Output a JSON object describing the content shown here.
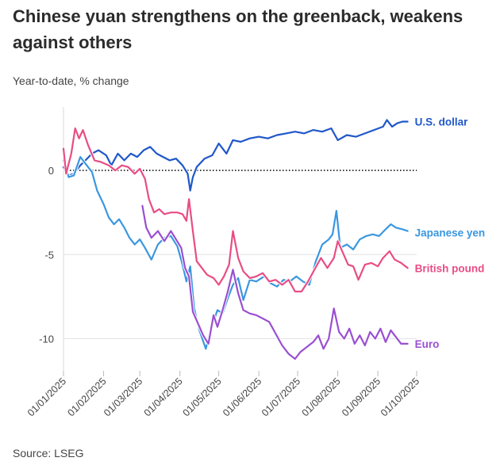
{
  "header": {
    "title": "Chinese yuan strengthens on the greenback, weakens against others",
    "subtitle": "Year-to-date, % change"
  },
  "footer": {
    "source": "Source: LSEG"
  },
  "chart_data": {
    "type": "line",
    "title": "Chinese yuan strengthens on the greenback, weakens against others",
    "subtitle": "Year-to-date, % change",
    "xlabel": "",
    "ylabel": "",
    "x_range": [
      "2025-01-01",
      "2025-10-01"
    ],
    "ylim": [
      -12,
      3.3
    ],
    "y_ticks": [
      0,
      -5,
      -10
    ],
    "x_ticks": [
      "01/01/2025",
      "01/02/2025",
      "01/03/2025",
      "01/04/2025",
      "01/05/2025",
      "01/06/2025",
      "01/07/2025",
      "01/08/2025",
      "01/09/2025",
      "01/10/2025"
    ],
    "zero_line": "dotted",
    "grid": "horizontal",
    "legend": "direct labels at line ends",
    "series": [
      {
        "name": "U.S. dollar",
        "color": "#1f57c9",
        "points": [
          [
            "2025-01-01",
            0.2
          ],
          [
            "2025-01-05",
            -0.3
          ],
          [
            "2025-01-09",
            -0.2
          ],
          [
            "2025-01-14",
            0.3
          ],
          [
            "2025-01-18",
            0.6
          ],
          [
            "2025-01-23",
            1.0
          ],
          [
            "2025-01-28",
            1.2
          ],
          [
            "2025-02-03",
            0.9
          ],
          [
            "2025-02-07",
            0.3
          ],
          [
            "2025-02-12",
            1.0
          ],
          [
            "2025-02-17",
            0.6
          ],
          [
            "2025-02-22",
            1.0
          ],
          [
            "2025-02-27",
            0.8
          ],
          [
            "2025-03-04",
            1.2
          ],
          [
            "2025-03-09",
            1.4
          ],
          [
            "2025-03-14",
            1.0
          ],
          [
            "2025-03-19",
            0.8
          ],
          [
            "2025-03-24",
            0.6
          ],
          [
            "2025-03-29",
            0.7
          ],
          [
            "2025-04-03",
            0.3
          ],
          [
            "2025-04-07",
            -0.2
          ],
          [
            "2025-04-09",
            -1.2
          ],
          [
            "2025-04-11",
            -0.4
          ],
          [
            "2025-04-14",
            0.2
          ],
          [
            "2025-04-20",
            0.7
          ],
          [
            "2025-04-26",
            0.9
          ],
          [
            "2025-05-01",
            1.6
          ],
          [
            "2025-05-07",
            1.0
          ],
          [
            "2025-05-12",
            1.8
          ],
          [
            "2025-05-18",
            1.7
          ],
          [
            "2025-05-25",
            1.9
          ],
          [
            "2025-06-01",
            2.0
          ],
          [
            "2025-06-08",
            1.9
          ],
          [
            "2025-06-15",
            2.1
          ],
          [
            "2025-06-22",
            2.2
          ],
          [
            "2025-06-29",
            2.3
          ],
          [
            "2025-07-06",
            2.2
          ],
          [
            "2025-07-13",
            2.4
          ],
          [
            "2025-07-20",
            2.3
          ],
          [
            "2025-07-27",
            2.5
          ],
          [
            "2025-08-01",
            1.8
          ],
          [
            "2025-08-08",
            2.1
          ],
          [
            "2025-08-15",
            2.0
          ],
          [
            "2025-08-22",
            2.2
          ],
          [
            "2025-08-29",
            2.4
          ],
          [
            "2025-09-05",
            2.6
          ],
          [
            "2025-09-08",
            3.0
          ],
          [
            "2025-09-12",
            2.6
          ],
          [
            "2025-09-16",
            2.8
          ],
          [
            "2025-09-20",
            2.9
          ],
          [
            "2025-09-24",
            2.9
          ]
        ]
      },
      {
        "name": "Japanese yen",
        "color": "#3a97e0",
        "points": [
          [
            "2025-01-01",
            0.6
          ],
          [
            "2025-01-05",
            -0.4
          ],
          [
            "2025-01-09",
            -0.3
          ],
          [
            "2025-01-14",
            0.8
          ],
          [
            "2025-01-19",
            0.3
          ],
          [
            "2025-01-23",
            -0.1
          ],
          [
            "2025-01-27",
            -1.2
          ],
          [
            "2025-02-01",
            -2.0
          ],
          [
            "2025-02-05",
            -2.8
          ],
          [
            "2025-02-09",
            -3.2
          ],
          [
            "2025-02-13",
            -2.9
          ],
          [
            "2025-02-17",
            -3.4
          ],
          [
            "2025-02-21",
            -4.0
          ],
          [
            "2025-02-25",
            -4.4
          ],
          [
            "2025-03-01",
            -4.1
          ],
          [
            "2025-03-05",
            -4.6
          ],
          [
            "2025-03-10",
            -5.3
          ],
          [
            "2025-03-15",
            -4.4
          ],
          [
            "2025-03-20",
            -4.0
          ],
          [
            "2025-03-25",
            -3.9
          ],
          [
            "2025-03-30",
            -4.5
          ],
          [
            "2025-04-03",
            -5.6
          ],
          [
            "2025-04-06",
            -6.6
          ],
          [
            "2025-04-09",
            -5.7
          ],
          [
            "2025-04-12",
            -8.2
          ],
          [
            "2025-04-16",
            -9.5
          ],
          [
            "2025-04-21",
            -10.6
          ],
          [
            "2025-04-25",
            -9.4
          ],
          [
            "2025-04-30",
            -8.3
          ],
          [
            "2025-05-04",
            -8.5
          ],
          [
            "2025-05-08",
            -7.6
          ],
          [
            "2025-05-12",
            -6.8
          ],
          [
            "2025-05-16",
            -6.4
          ],
          [
            "2025-05-20",
            -7.7
          ],
          [
            "2025-05-25",
            -6.5
          ],
          [
            "2025-05-30",
            -6.6
          ],
          [
            "2025-06-05",
            -6.3
          ],
          [
            "2025-06-10",
            -6.7
          ],
          [
            "2025-06-15",
            -6.9
          ],
          [
            "2025-06-20",
            -6.5
          ],
          [
            "2025-06-25",
            -6.6
          ],
          [
            "2025-06-30",
            -6.3
          ],
          [
            "2025-07-05",
            -6.6
          ],
          [
            "2025-07-10",
            -6.8
          ],
          [
            "2025-07-15",
            -5.4
          ],
          [
            "2025-07-20",
            -4.4
          ],
          [
            "2025-07-25",
            -4.1
          ],
          [
            "2025-07-28",
            -3.8
          ],
          [
            "2025-07-31",
            -2.4
          ],
          [
            "2025-08-03",
            -4.6
          ],
          [
            "2025-08-08",
            -4.4
          ],
          [
            "2025-08-13",
            -4.7
          ],
          [
            "2025-08-18",
            -4.1
          ],
          [
            "2025-08-23",
            -3.9
          ],
          [
            "2025-08-28",
            -3.8
          ],
          [
            "2025-09-02",
            -3.9
          ],
          [
            "2025-09-07",
            -3.5
          ],
          [
            "2025-09-11",
            -3.2
          ],
          [
            "2025-09-15",
            -3.4
          ],
          [
            "2025-09-20",
            -3.5
          ],
          [
            "2025-09-24",
            -3.6
          ]
        ]
      },
      {
        "name": "British pound",
        "color": "#e84d84",
        "points": [
          [
            "2025-01-01",
            1.3
          ],
          [
            "2025-01-03",
            -0.2
          ],
          [
            "2025-01-07",
            1.0
          ],
          [
            "2025-01-10",
            2.5
          ],
          [
            "2025-01-13",
            1.9
          ],
          [
            "2025-01-16",
            2.4
          ],
          [
            "2025-01-20",
            1.5
          ],
          [
            "2025-01-25",
            0.6
          ],
          [
            "2025-01-30",
            0.5
          ],
          [
            "2025-02-05",
            0.3
          ],
          [
            "2025-02-10",
            0.0
          ],
          [
            "2025-02-15",
            0.3
          ],
          [
            "2025-02-20",
            0.2
          ],
          [
            "2025-02-25",
            -0.2
          ],
          [
            "2025-03-01",
            0.1
          ],
          [
            "2025-03-05",
            -0.5
          ],
          [
            "2025-03-08",
            -1.7
          ],
          [
            "2025-03-12",
            -2.5
          ],
          [
            "2025-03-16",
            -2.3
          ],
          [
            "2025-03-20",
            -2.6
          ],
          [
            "2025-03-25",
            -2.5
          ],
          [
            "2025-03-30",
            -2.5
          ],
          [
            "2025-04-03",
            -2.6
          ],
          [
            "2025-04-06",
            -3.0
          ],
          [
            "2025-04-08",
            -1.7
          ],
          [
            "2025-04-11",
            -3.6
          ],
          [
            "2025-04-14",
            -5.4
          ],
          [
            "2025-04-18",
            -5.8
          ],
          [
            "2025-04-22",
            -6.2
          ],
          [
            "2025-04-27",
            -6.4
          ],
          [
            "2025-05-01",
            -6.8
          ],
          [
            "2025-05-05",
            -6.3
          ],
          [
            "2025-05-09",
            -5.6
          ],
          [
            "2025-05-12",
            -3.6
          ],
          [
            "2025-05-16",
            -5.2
          ],
          [
            "2025-05-20",
            -6.0
          ],
          [
            "2025-05-25",
            -6.4
          ],
          [
            "2025-05-30",
            -6.3
          ],
          [
            "2025-06-04",
            -6.1
          ],
          [
            "2025-06-09",
            -6.6
          ],
          [
            "2025-06-14",
            -6.5
          ],
          [
            "2025-06-19",
            -6.8
          ],
          [
            "2025-06-24",
            -6.5
          ],
          [
            "2025-06-29",
            -7.2
          ],
          [
            "2025-07-04",
            -7.2
          ],
          [
            "2025-07-09",
            -6.6
          ],
          [
            "2025-07-14",
            -5.9
          ],
          [
            "2025-07-19",
            -5.2
          ],
          [
            "2025-07-24",
            -5.8
          ],
          [
            "2025-07-29",
            -5.2
          ],
          [
            "2025-08-01",
            -4.2
          ],
          [
            "2025-08-05",
            -4.9
          ],
          [
            "2025-08-09",
            -5.6
          ],
          [
            "2025-08-13",
            -5.7
          ],
          [
            "2025-08-17",
            -6.5
          ],
          [
            "2025-08-22",
            -5.6
          ],
          [
            "2025-08-27",
            -5.5
          ],
          [
            "2025-09-01",
            -5.7
          ],
          [
            "2025-09-05",
            -5.2
          ],
          [
            "2025-09-10",
            -4.8
          ],
          [
            "2025-09-14",
            -5.3
          ],
          [
            "2025-09-19",
            -5.5
          ],
          [
            "2025-09-24",
            -5.8
          ]
        ]
      },
      {
        "name": "Euro",
        "color": "#9a4fd1",
        "points": [
          [
            "2025-03-03",
            -2.1
          ],
          [
            "2025-03-06",
            -3.4
          ],
          [
            "2025-03-10",
            -4.0
          ],
          [
            "2025-03-15",
            -3.6
          ],
          [
            "2025-03-20",
            -4.2
          ],
          [
            "2025-03-25",
            -3.6
          ],
          [
            "2025-03-29",
            -4.1
          ],
          [
            "2025-04-02",
            -4.6
          ],
          [
            "2025-04-05",
            -5.8
          ],
          [
            "2025-04-08",
            -6.3
          ],
          [
            "2025-04-11",
            -8.4
          ],
          [
            "2025-04-15",
            -9.1
          ],
          [
            "2025-04-19",
            -9.8
          ],
          [
            "2025-04-23",
            -10.3
          ],
          [
            "2025-04-27",
            -8.6
          ],
          [
            "2025-04-30",
            -9.3
          ],
          [
            "2025-05-04",
            -8.3
          ],
          [
            "2025-05-08",
            -7.2
          ],
          [
            "2025-05-12",
            -5.9
          ],
          [
            "2025-05-16",
            -7.3
          ],
          [
            "2025-05-20",
            -8.3
          ],
          [
            "2025-05-25",
            -8.5
          ],
          [
            "2025-05-30",
            -8.6
          ],
          [
            "2025-06-04",
            -8.8
          ],
          [
            "2025-06-09",
            -9.0
          ],
          [
            "2025-06-14",
            -9.7
          ],
          [
            "2025-06-19",
            -10.4
          ],
          [
            "2025-06-24",
            -10.9
          ],
          [
            "2025-06-29",
            -11.2
          ],
          [
            "2025-07-03",
            -10.8
          ],
          [
            "2025-07-08",
            -10.5
          ],
          [
            "2025-07-13",
            -10.2
          ],
          [
            "2025-07-17",
            -9.8
          ],
          [
            "2025-07-21",
            -10.6
          ],
          [
            "2025-07-25",
            -10.0
          ],
          [
            "2025-07-29",
            -8.2
          ],
          [
            "2025-08-02",
            -9.6
          ],
          [
            "2025-08-06",
            -10.0
          ],
          [
            "2025-08-10",
            -9.4
          ],
          [
            "2025-08-14",
            -10.3
          ],
          [
            "2025-08-18",
            -9.8
          ],
          [
            "2025-08-22",
            -10.4
          ],
          [
            "2025-08-26",
            -9.6
          ],
          [
            "2025-08-30",
            -10.0
          ],
          [
            "2025-09-03",
            -9.4
          ],
          [
            "2025-09-07",
            -10.2
          ],
          [
            "2025-09-11",
            -9.5
          ],
          [
            "2025-09-15",
            -9.9
          ],
          [
            "2025-09-19",
            -10.3
          ],
          [
            "2025-09-24",
            -10.3
          ]
        ]
      }
    ]
  }
}
